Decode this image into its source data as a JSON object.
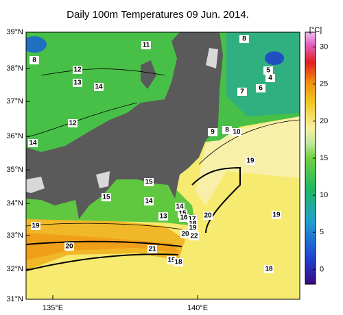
{
  "title": "Daily 100m Temperatures 09 Jun. 2014.",
  "lat_labels": [
    "39°N",
    "38°N",
    "37°N",
    "36°N",
    "35°N",
    "34°N",
    "33°N",
    "32°N",
    "31°N"
  ],
  "lon_labels": [
    "135°E",
    "140°E"
  ],
  "colorbar": {
    "unit": "[°C]",
    "range": [
      -2,
      32
    ],
    "ticks": [
      30,
      25,
      20,
      15,
      10,
      5,
      0
    ]
  },
  "contour_labels": [
    "11",
    "8",
    "8",
    "12",
    "7",
    "5",
    "4",
    "6",
    "13",
    "14",
    "12",
    "9",
    "8",
    "10",
    "14",
    "19",
    "15",
    "15",
    "14",
    "14",
    "15",
    "16",
    "13",
    "20",
    "17",
    "18",
    "19",
    "19",
    "19",
    "20",
    "22",
    "20",
    "21",
    "19",
    "18",
    "18"
  ]
}
